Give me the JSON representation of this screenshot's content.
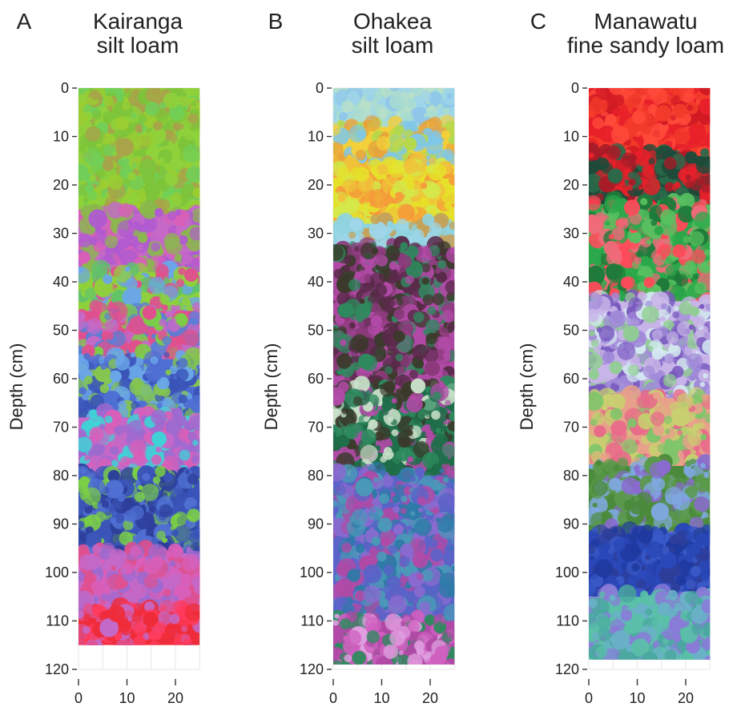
{
  "chart_data": [
    {
      "type": "heatmap",
      "panel": "A",
      "title_lines": [
        "Kairanga",
        "silt loam"
      ],
      "ylabel": "Depth (cm)",
      "xlabel": "",
      "x_ticks": [
        0,
        10,
        20
      ],
      "y_ticks": [
        0,
        10,
        20,
        30,
        40,
        50,
        60,
        70,
        80,
        90,
        100,
        110,
        120
      ],
      "xlim": [
        0,
        25
      ],
      "ylim": [
        0,
        120
      ],
      "y_inverted": true,
      "grid": true,
      "profile_depth": 115,
      "profile_width": 25,
      "bands": [
        {
          "from": 0,
          "to": 26,
          "colors": [
            "#8fd13a",
            "#7dc43a",
            "#a9a24a",
            "#6fcf5a",
            "#9acd32"
          ]
        },
        {
          "from": 26,
          "to": 38,
          "colors": [
            "#c469c8",
            "#d85fb9",
            "#b05ad1",
            "#8ab84d"
          ]
        },
        {
          "from": 38,
          "to": 46,
          "colors": [
            "#8fd13a",
            "#5fc26d",
            "#e0508e",
            "#6aa6e8"
          ]
        },
        {
          "from": 46,
          "to": 56,
          "colors": [
            "#e0508e",
            "#7bcf45",
            "#5b7ed6",
            "#c469c8"
          ]
        },
        {
          "from": 56,
          "to": 68,
          "colors": [
            "#4f6fd2",
            "#6aa6e8",
            "#84c650",
            "#3a54b8"
          ]
        },
        {
          "from": 68,
          "to": 80,
          "colors": [
            "#c469c8",
            "#d85fb9",
            "#3fd2d6",
            "#9e6ad0"
          ]
        },
        {
          "from": 80,
          "to": 96,
          "colors": [
            "#3a54b8",
            "#4f6fd2",
            "#7bcf45",
            "#2d3e9a"
          ]
        },
        {
          "from": 96,
          "to": 108,
          "colors": [
            "#c469c8",
            "#d85fb9",
            "#e0508e",
            "#9e6ad0"
          ]
        },
        {
          "from": 108,
          "to": 115,
          "colors": [
            "#ef2c3a",
            "#e0508e",
            "#ff3b5c",
            "#c469c8"
          ]
        }
      ]
    },
    {
      "type": "heatmap",
      "panel": "B",
      "title_lines": [
        "Ohakea",
        "silt loam"
      ],
      "ylabel": "Depth (cm)",
      "xlabel": "",
      "x_ticks": [
        0,
        10,
        20
      ],
      "y_ticks": [
        0,
        10,
        20,
        30,
        40,
        50,
        60,
        70,
        80,
        90,
        100,
        110,
        120
      ],
      "xlim": [
        0,
        25
      ],
      "ylim": [
        0,
        120
      ],
      "y_inverted": true,
      "grid": true,
      "profile_depth": 119,
      "profile_width": 25,
      "bands": [
        {
          "from": 0,
          "to": 8,
          "colors": [
            "#9ed5e8",
            "#a8dcd0",
            "#8ec6ea",
            "#b8e0c8"
          ]
        },
        {
          "from": 8,
          "to": 16,
          "colors": [
            "#f3d03a",
            "#e8a23c",
            "#b5d94a",
            "#7fc7e8"
          ]
        },
        {
          "from": 16,
          "to": 28,
          "colors": [
            "#e6e02a",
            "#f0c23a",
            "#d4e84a",
            "#f59a3a"
          ]
        },
        {
          "from": 28,
          "to": 33,
          "colors": [
            "#8fd3e0",
            "#9ed5e8",
            "#c4a25a"
          ]
        },
        {
          "from": 33,
          "to": 62,
          "colors": [
            "#b04aa6",
            "#5a2a4a",
            "#2e8a5e",
            "#8a3a7a",
            "#3a3a2a"
          ]
        },
        {
          "from": 62,
          "to": 80,
          "colors": [
            "#1f6e4a",
            "#2e8a5e",
            "#b04aa6",
            "#3a3a2a",
            "#c8e0c8"
          ]
        },
        {
          "from": 80,
          "to": 110,
          "colors": [
            "#5b63c8",
            "#4a9ab8",
            "#8a6ad0",
            "#2e7aa8",
            "#b04aa6"
          ]
        },
        {
          "from": 110,
          "to": 119,
          "colors": [
            "#b04aa6",
            "#2e8a5e",
            "#d060c0",
            "#e0a0e0"
          ]
        }
      ]
    },
    {
      "type": "heatmap",
      "panel": "C",
      "title_lines": [
        "Manawatu",
        "fine sandy loam"
      ],
      "ylabel": "Depth (cm)",
      "xlabel": "",
      "x_ticks": [
        0,
        10,
        20
      ],
      "y_ticks": [
        0,
        10,
        20,
        30,
        40,
        50,
        60,
        70,
        80,
        90,
        100,
        110,
        120
      ],
      "xlim": [
        0,
        25
      ],
      "ylim": [
        0,
        120
      ],
      "y_inverted": true,
      "grid": true,
      "profile_depth": 118,
      "profile_width": 25,
      "bands": [
        {
          "from": 0,
          "to": 14,
          "colors": [
            "#e8202a",
            "#f23a2a",
            "#d01a24",
            "#ff4a3a"
          ]
        },
        {
          "from": 14,
          "to": 24,
          "colors": [
            "#1f4a3a",
            "#a81c28",
            "#2a6a4a",
            "#e8202a"
          ]
        },
        {
          "from": 24,
          "to": 44,
          "colors": [
            "#2aa84a",
            "#1f7a3a",
            "#ff4a5a",
            "#58c060",
            "#f06a7a"
          ]
        },
        {
          "from": 44,
          "to": 64,
          "colors": [
            "#c8b4e8",
            "#a08ad8",
            "#d4e8f0",
            "#8fcf8f",
            "#7a5ac0"
          ]
        },
        {
          "from": 64,
          "to": 78,
          "colors": [
            "#e8a08a",
            "#c8d070",
            "#7fc56a",
            "#e86a8a"
          ]
        },
        {
          "from": 78,
          "to": 92,
          "colors": [
            "#4a8a3a",
            "#7fa8e0",
            "#5a9a4a",
            "#8a6ad0"
          ]
        },
        {
          "from": 92,
          "to": 105,
          "colors": [
            "#2a48b8",
            "#1f3aa0",
            "#3a5ac8",
            "#2e3e9a"
          ]
        },
        {
          "from": 105,
          "to": 118,
          "colors": [
            "#5ac0a8",
            "#6ab0c8",
            "#8a7ad8",
            "#4aa8a0"
          ]
        }
      ]
    }
  ]
}
